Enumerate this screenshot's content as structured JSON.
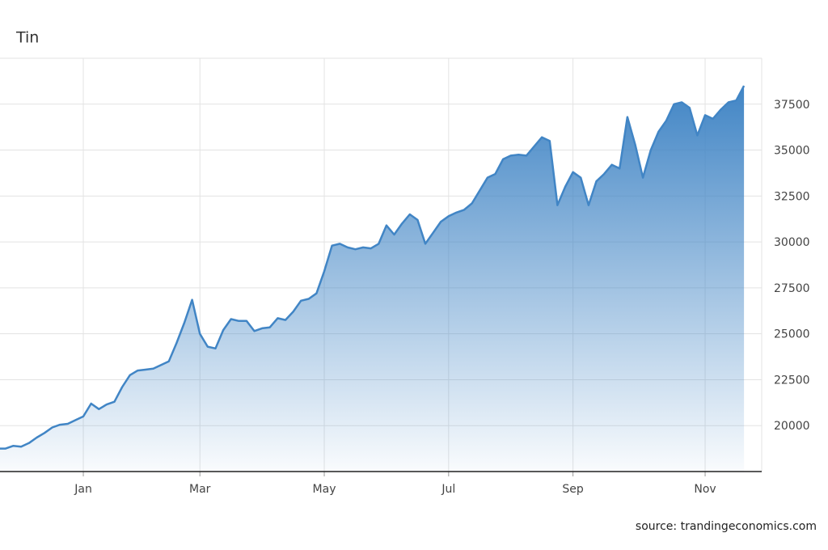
{
  "chart_data": {
    "type": "area",
    "title": "Tin",
    "source": "source: trandingeconomics.com",
    "color": "#4185c5",
    "categories": [
      null,
      null,
      null,
      null,
      null,
      null,
      null,
      null,
      null,
      null,
      null,
      "Jan",
      null,
      null,
      null,
      null,
      null,
      null,
      null,
      null,
      null,
      null,
      null,
      null,
      null,
      null,
      "Mar",
      null,
      null,
      null,
      null,
      null,
      null,
      null,
      null,
      null,
      null,
      null,
      null,
      null,
      null,
      null,
      "May",
      null,
      null,
      null,
      null,
      null,
      null,
      null,
      null,
      null,
      null,
      null,
      null,
      null,
      null,
      null,
      "Jul",
      null,
      null,
      null,
      null,
      null,
      null,
      null,
      null,
      null,
      null,
      null,
      null,
      null,
      null,
      null,
      "Sep",
      null,
      null,
      null,
      null,
      null,
      null,
      null,
      null,
      null,
      null,
      null,
      null,
      null,
      null,
      null,
      null,
      "Nov",
      null,
      null,
      null,
      null,
      null
    ],
    "values": [
      18750,
      18750,
      18900,
      18850,
      19050,
      19350,
      19600,
      19900,
      20050,
      20100,
      20300,
      20500,
      21200,
      20900,
      21150,
      21300,
      22100,
      22750,
      23000,
      23050,
      23100,
      23300,
      23500,
      24500,
      25600,
      26850,
      25000,
      24300,
      24200,
      25200,
      25800,
      25700,
      25700,
      25150,
      25300,
      25350,
      25850,
      25750,
      26200,
      26800,
      26900,
      27200,
      28400,
      29800,
      29900,
      29700,
      29600,
      29700,
      29650,
      29900,
      30900,
      30400,
      31000,
      31500,
      31200,
      29900,
      30500,
      31100,
      31400,
      31600,
      31750,
      32100,
      32800,
      33500,
      33700,
      34500,
      34700,
      34750,
      34700,
      35200,
      35700,
      35500,
      32000,
      33000,
      33800,
      33500,
      32000,
      33300,
      33700,
      34200,
      34000,
      36800,
      35300,
      33500,
      35000,
      36000,
      36600,
      37500,
      37600,
      37300,
      35800,
      36900,
      36700,
      37200,
      37600,
      37700,
      38500
    ],
    "ylim": [
      17500,
      40000
    ],
    "yticks": [
      20000,
      22500,
      25000,
      27500,
      30000,
      32500,
      35000,
      37500
    ],
    "grid": true
  }
}
